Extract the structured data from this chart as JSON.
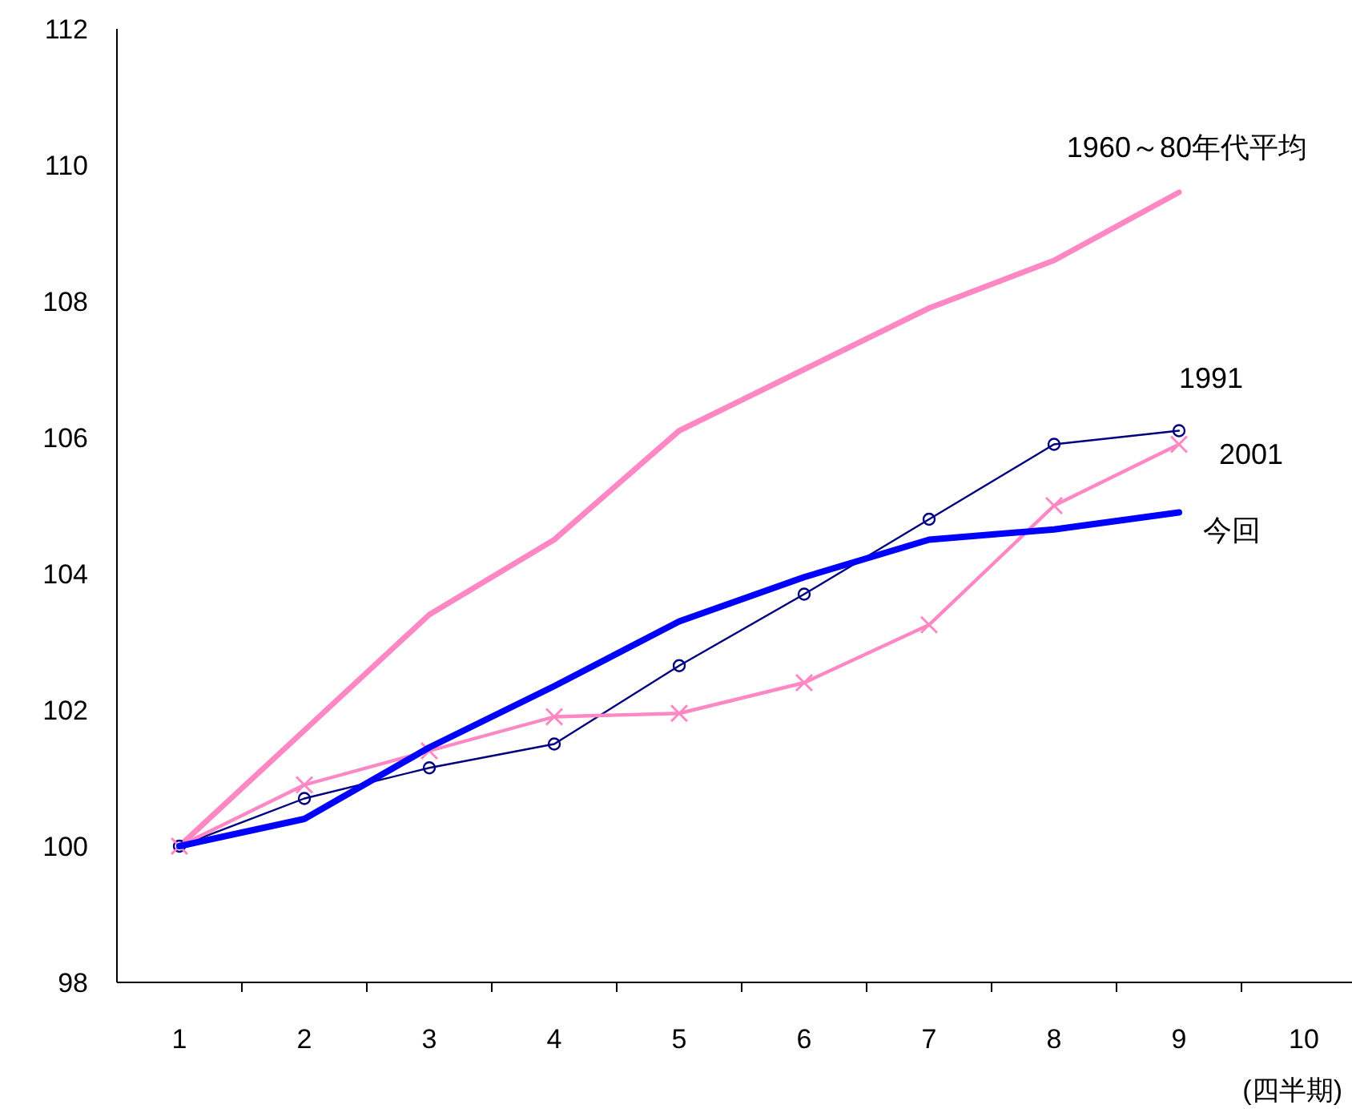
{
  "chart_data": {
    "type": "line",
    "xlabel": "(四半期)",
    "categories": [
      "1",
      "2",
      "3",
      "4",
      "5",
      "6",
      "7",
      "8",
      "9",
      "10"
    ],
    "ylim": [
      98,
      112
    ],
    "yticks": [
      98,
      100,
      102,
      104,
      106,
      108,
      110,
      112
    ],
    "grid": false,
    "series": [
      {
        "name": "1960～80年代平均",
        "color": "#ff88c4",
        "marker": "none",
        "values": [
          100,
          101.7,
          103.4,
          104.5,
          106.1,
          107.0,
          107.9,
          108.6,
          109.6,
          null
        ]
      },
      {
        "name": "1991",
        "color": "#000080",
        "marker": "circle",
        "values": [
          100,
          100.7,
          101.15,
          101.5,
          102.65,
          103.7,
          104.8,
          105.9,
          106.1,
          null
        ]
      },
      {
        "name": "2001",
        "color": "#ff88c4",
        "marker": "cross",
        "values": [
          100,
          100.9,
          101.4,
          101.9,
          101.95,
          102.4,
          103.25,
          105.0,
          105.9,
          null
        ]
      },
      {
        "name": "今回",
        "color": "#0000ff",
        "marker": "none",
        "values": [
          100,
          100.4,
          101.45,
          102.35,
          103.3,
          103.95,
          104.5,
          104.65,
          104.9,
          null
        ]
      }
    ]
  }
}
